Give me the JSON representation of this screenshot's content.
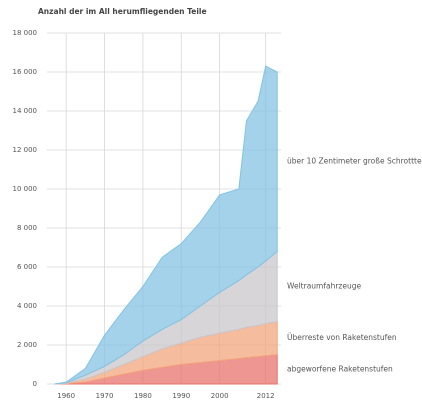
{
  "chart_data": {
    "type": "area",
    "stacked": true,
    "title": "Anzahl der im All herumfliegenden Teile",
    "x": [
      1957,
      1960,
      1965,
      1970,
      1975,
      1980,
      1985,
      1990,
      1995,
      2000,
      2005,
      2007,
      2010,
      2012,
      2015
    ],
    "series": [
      {
        "name": "abgeworfene Raketenstufen",
        "color": "#e8736c",
        "values": [
          0,
          20,
          100,
          300,
          500,
          700,
          850,
          1000,
          1100,
          1200,
          1300,
          1350,
          1400,
          1450,
          1500
        ]
      },
      {
        "name": "Überreste von Raketenstufen",
        "color": "#f3a57e",
        "values": [
          0,
          20,
          150,
          300,
          500,
          700,
          950,
          1100,
          1300,
          1400,
          1500,
          1550,
          1600,
          1650,
          1700
        ]
      },
      {
        "name": "Weltraumfahrzeuge",
        "color": "#c9c7cb",
        "values": [
          0,
          20,
          200,
          300,
          500,
          800,
          1000,
          1200,
          1600,
          2100,
          2500,
          2700,
          3000,
          3200,
          3600
        ]
      },
      {
        "name": "über 10 Zentimeter große Schrottteile",
        "color": "#84c3e3",
        "values": [
          0,
          40,
          350,
          1600,
          2300,
          2800,
          3700,
          3900,
          4300,
          5000,
          4700,
          7900,
          8500,
          10000,
          9200
        ]
      }
    ],
    "xlim": [
      1955,
      2016
    ],
    "xticks": [
      1960,
      1970,
      1980,
      1990,
      2000,
      2012
    ],
    "ylim": [
      0,
      18000
    ],
    "yticks": [
      0,
      {
        "value": 2000,
        "label": "2 000"
      },
      {
        "value": 4000,
        "label": "4 000"
      },
      {
        "value": 6000,
        "label": "6 000"
      },
      {
        "value": 8000,
        "label": "8 000"
      },
      {
        "value": 10000,
        "label": "10 000"
      },
      {
        "value": 12000,
        "label": "12 000"
      },
      {
        "value": 14000,
        "label": "14 000"
      },
      {
        "value": 16000,
        "label": "16 000"
      },
      {
        "value": 18000,
        "label": "18 000"
      }
    ],
    "grid": true
  }
}
